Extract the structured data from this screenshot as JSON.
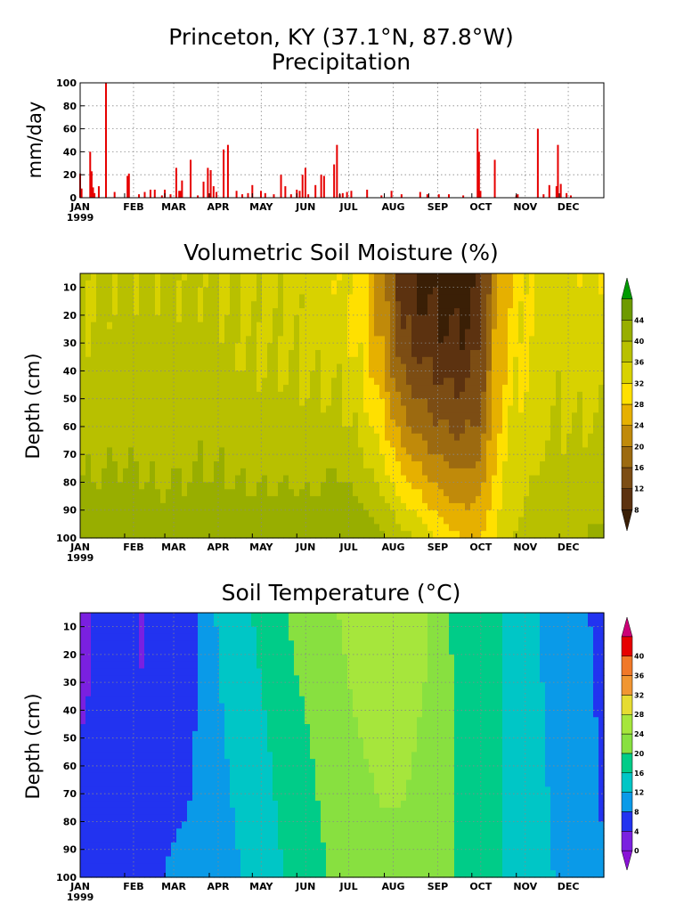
{
  "header": {
    "title_line1": "Princeton, KY   (37.1°N, 87.8°W)",
    "title_line2": "Precipitation"
  },
  "month_labels": [
    "JAN",
    "FEB",
    "MAR",
    "APR",
    "MAY",
    "JUN",
    "JUL",
    "AUG",
    "SEP",
    "OCT",
    "NOV",
    "DEC"
  ],
  "year_label": "1999",
  "colors": {
    "precip_bar": "#e60000",
    "grid": "#888888"
  },
  "chart_data": [
    {
      "id": "precipitation",
      "type": "bar",
      "title": "Precipitation",
      "ylabel": "mm/day",
      "ylim": [
        0,
        100
      ],
      "yticks": [
        0,
        20,
        40,
        60,
        80,
        100
      ],
      "x_units": "day_of_year",
      "xlim": [
        1,
        365
      ],
      "days": [
        1,
        2,
        8,
        9,
        10,
        11,
        14,
        19,
        25,
        34,
        35,
        42,
        46,
        50,
        53,
        58,
        60,
        64,
        68,
        70,
        71,
        72,
        78,
        83,
        87,
        90,
        92,
        94,
        96,
        101,
        104,
        110,
        114,
        118,
        121,
        127,
        130,
        136,
        141,
        144,
        148,
        152,
        154,
        156,
        158,
        160,
        165,
        169,
        171,
        178,
        180,
        182,
        184,
        187,
        190,
        201,
        211,
        218,
        225,
        238,
        243,
        251,
        258,
        268,
        278,
        279,
        280,
        290,
        305,
        306,
        320,
        324,
        328,
        333,
        334,
        336,
        340,
        343
      ],
      "values": [
        21,
        8,
        40,
        23,
        9,
        4,
        10,
        100,
        5,
        19,
        21,
        3,
        5,
        7,
        7,
        2,
        7,
        3,
        26,
        6,
        6,
        15,
        33,
        2,
        14,
        26,
        24,
        10,
        5,
        42,
        46,
        6,
        3,
        4,
        11,
        6,
        4,
        3,
        20,
        10,
        3,
        7,
        6,
        20,
        26,
        3,
        11,
        20,
        19,
        29,
        46,
        3,
        4,
        5,
        6,
        7,
        2,
        6,
        3,
        5,
        3,
        3,
        3,
        2,
        60,
        40,
        6,
        33,
        2,
        3,
        60,
        3,
        11,
        10,
        46,
        12,
        4,
        2
      ]
    },
    {
      "id": "soil-moisture",
      "type": "heatmap",
      "title": "Volumetric Soil Moisture (%)",
      "xlabel": "",
      "ylabel": "Depth (cm)",
      "x_units": "day_of_year",
      "xlim": [
        1,
        365
      ],
      "ylim": [
        100,
        5
      ],
      "yticks": [
        10,
        20,
        30,
        40,
        50,
        60,
        70,
        80,
        90,
        100
      ],
      "colorbar_ticks": [
        8,
        12,
        16,
        20,
        24,
        28,
        32,
        36,
        40,
        44
      ],
      "colorbar_colors": [
        "#3a1f06",
        "#5c3210",
        "#7c4d14",
        "#9c6a10",
        "#c08a0a",
        "#e6b000",
        "#ffe000",
        "#d8d200",
        "#b8c000",
        "#98ae00",
        "#6e9a00",
        "#009a00"
      ],
      "surface_profile_days": [
        1,
        30,
        60,
        90,
        120,
        150,
        160,
        180,
        195,
        210,
        225,
        240,
        255,
        268,
        280,
        290,
        300,
        310,
        320,
        335,
        350,
        365
      ],
      "surface_profile": [
        36,
        37,
        37,
        37,
        35,
        35,
        34,
        33,
        30,
        22,
        10,
        7,
        6,
        6,
        10,
        24,
        29,
        31,
        34,
        34,
        33,
        33
      ],
      "deep_profile": [
        42,
        42,
        41,
        42,
        42,
        42,
        42,
        44,
        43,
        41,
        38,
        34,
        30,
        28,
        28,
        32,
        36,
        37,
        38,
        39,
        40,
        41
      ]
    },
    {
      "id": "soil-temperature",
      "type": "heatmap",
      "title": "Soil Temperature (°C)",
      "xlabel": "",
      "ylabel": "Depth (cm)",
      "x_units": "day_of_year",
      "xlim": [
        1,
        365
      ],
      "ylim": [
        100,
        5
      ],
      "yticks": [
        10,
        20,
        30,
        40,
        50,
        60,
        70,
        80,
        90,
        100
      ],
      "colorbar_ticks": [
        0,
        4,
        8,
        12,
        16,
        20,
        24,
        28,
        32,
        36,
        40
      ],
      "colorbar_colors": [
        "#8a12d6",
        "#7a20e0",
        "#2233f0",
        "#0a9ae8",
        "#00c6c6",
        "#00cc88",
        "#88e040",
        "#a6e63c",
        "#e6dc32",
        "#f09632",
        "#f07828",
        "#e60000",
        "#cc0077"
      ],
      "surface_profile_days": [
        1,
        10,
        20,
        35,
        45,
        55,
        60,
        75,
        90,
        105,
        120,
        135,
        150,
        165,
        180,
        195,
        210,
        225,
        240,
        255,
        270,
        285,
        300,
        315,
        330,
        345,
        365
      ],
      "surface_profile": [
        2,
        4,
        7,
        6,
        3,
        8,
        6,
        4,
        11,
        14,
        16,
        18,
        21,
        22,
        24,
        26,
        27,
        27,
        25,
        21,
        17,
        19,
        15,
        13,
        10,
        9,
        7
      ],
      "deep_profile": [
        6,
        5,
        4,
        5,
        6,
        7,
        8,
        9,
        10,
        11,
        13,
        15,
        17,
        19,
        21,
        22,
        23,
        23,
        22,
        21,
        19,
        17,
        15,
        14,
        12,
        10,
        8
      ]
    }
  ]
}
